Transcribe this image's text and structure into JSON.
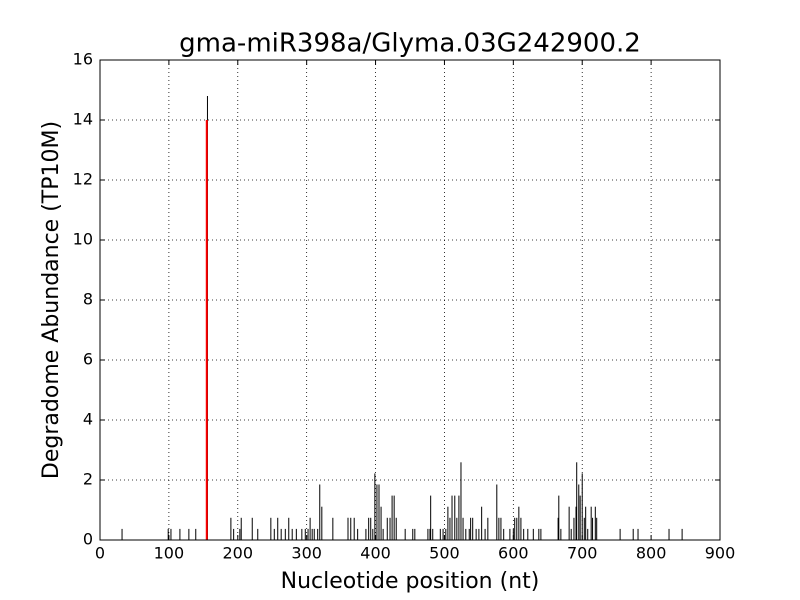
{
  "chart_data": {
    "type": "stem",
    "title": "gma-miR398a/Glyma.03G242900.2",
    "x_label": "Nucleotide position (nt)",
    "y_label": "Degradome Abundance (TP10M)",
    "xlim": [
      0,
      900
    ],
    "xticks": [
      0,
      100,
      200,
      300,
      400,
      500,
      600,
      700,
      800,
      900
    ],
    "ylim": [
      0,
      16
    ],
    "yticks": [
      0,
      2,
      4,
      6,
      8,
      10,
      12,
      14,
      16
    ],
    "grid": true,
    "series": [
      {
        "color": "#000000",
        "width": 1,
        "x": [
          32,
          99,
          103,
          116,
          129,
          139,
          156,
          190,
          194,
          203,
          205,
          221,
          229,
          248,
          253,
          258,
          263,
          269,
          274,
          279,
          285,
          293,
          298,
          302,
          305,
          308,
          311,
          316,
          319,
          322,
          338,
          360,
          364,
          369,
          374,
          386,
          390,
          393,
          396,
          399,
          402,
          405,
          408,
          411,
          417,
          421,
          424,
          427,
          430,
          443,
          454,
          457,
          476,
          479,
          480,
          483,
          494,
          498,
          502,
          505,
          508,
          511,
          515,
          518,
          521,
          524,
          527,
          531,
          536,
          538,
          541,
          546,
          550,
          554,
          559,
          563,
          576,
          579,
          582,
          586,
          595,
          600,
          602,
          605,
          608,
          611,
          615,
          621,
          629,
          637,
          640,
          665,
          666,
          669,
          681,
          684,
          688,
          691,
          692,
          695,
          697,
          700,
          703,
          705,
          708,
          713,
          715,
          719,
          721,
          755,
          774,
          781,
          826,
          845
        ],
        "values": [
          0.37,
          0.37,
          0.37,
          0.37,
          0.37,
          0.37,
          14.8,
          0.74,
          0.37,
          0.37,
          0.74,
          0.74,
          0.37,
          0.74,
          0.37,
          0.74,
          0.37,
          0.37,
          0.74,
          0.37,
          0.37,
          0.37,
          0.37,
          0.37,
          0.74,
          0.37,
          0.37,
          0.37,
          1.85,
          1.11,
          0.74,
          0.74,
          0.74,
          0.74,
          0.37,
          0.37,
          0.74,
          0.74,
          0.37,
          2.22,
          1.85,
          1.85,
          1.11,
          0.37,
          0.74,
          0.74,
          1.48,
          1.48,
          0.74,
          0.37,
          0.37,
          0.37,
          0.37,
          0.37,
          1.48,
          0.37,
          0.37,
          0.37,
          0.37,
          1.11,
          0.74,
          1.48,
          1.48,
          0.74,
          1.48,
          2.59,
          0.74,
          0.37,
          0.37,
          0.74,
          0.74,
          0.37,
          0.37,
          1.11,
          0.37,
          0.74,
          1.85,
          0.74,
          0.74,
          0.37,
          0.37,
          0.37,
          0.74,
          0.74,
          1.11,
          0.74,
          0.37,
          0.37,
          0.37,
          0.37,
          0.37,
          0.74,
          1.48,
          0.37,
          1.11,
          0.37,
          0.74,
          1.11,
          2.59,
          1.85,
          1.48,
          2.22,
          0.74,
          1.11,
          0.37,
          1.11,
          0.74,
          1.11,
          0.74,
          0.37,
          0.37,
          0.37,
          0.37,
          0.37
        ]
      },
      {
        "color": "#ff0000",
        "width": 2,
        "x": [
          155
        ],
        "values": [
          14
        ]
      }
    ]
  }
}
